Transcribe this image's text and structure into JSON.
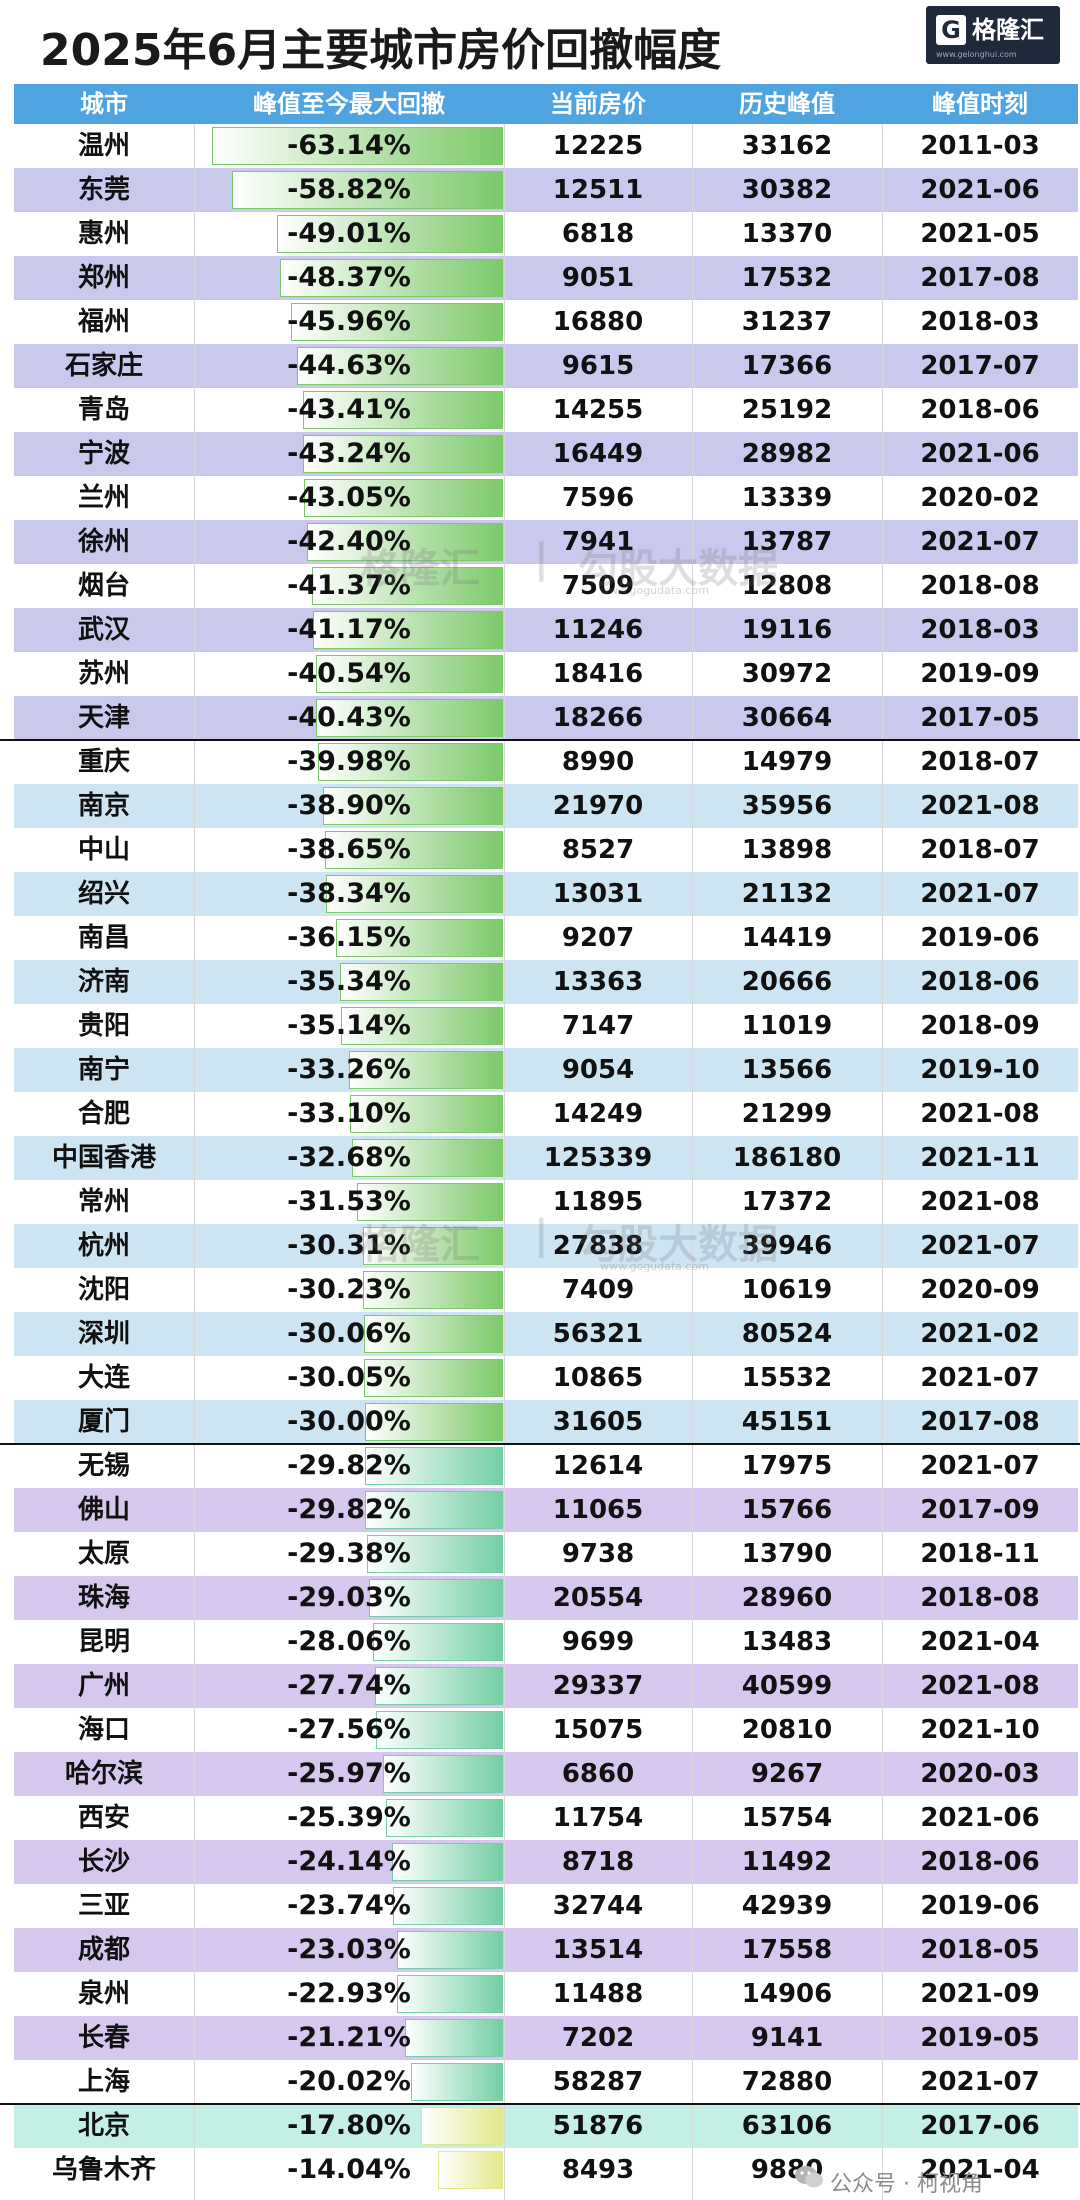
{
  "header": {
    "title": "2025年6月主要城市房价回撤幅度",
    "logo_mark": "G",
    "logo_text": "格隆汇",
    "logo_url": "www.gelonghui.com"
  },
  "columns": [
    "城市",
    "峰值至今最大回撤",
    "当前房价",
    "历史峰值",
    "峰值时刻"
  ],
  "watermark": {
    "brand": "格隆汇",
    "divider": "|",
    "data_brand": "勾股大数据",
    "url": "www.gogudata.com"
  },
  "footer": {
    "text": "公众号 · 柯视角"
  },
  "colors": {
    "header_bg": "#4fa3df",
    "group1_alt": "#c9c9ee",
    "group2_alt": "#cde5f2",
    "group3_alt": "#d5c7ee",
    "group4_row": "#c4efe6",
    "bar_green": "#7cc96a",
    "bar_teal": "#74cfa5",
    "bar_yellow": "#e2e88a"
  },
  "chart_data": {
    "type": "table",
    "title": "2025年6月主要城市房价回撤幅度",
    "columns": [
      "城市",
      "峰值至今最大回撤",
      "当前房价",
      "历史峰值",
      "峰值时刻"
    ],
    "rows": [
      {
        "city": "温州",
        "drawdown": "-63.14%",
        "drop": 63.14,
        "current": "12225",
        "peak": "33162",
        "peak_date": "2011-03",
        "group": 1
      },
      {
        "city": "东莞",
        "drawdown": "-58.82%",
        "drop": 58.82,
        "current": "12511",
        "peak": "30382",
        "peak_date": "2021-06",
        "group": 1
      },
      {
        "city": "惠州",
        "drawdown": "-49.01%",
        "drop": 49.01,
        "current": "6818",
        "peak": "13370",
        "peak_date": "2021-05",
        "group": 1
      },
      {
        "city": "郑州",
        "drawdown": "-48.37%",
        "drop": 48.37,
        "current": "9051",
        "peak": "17532",
        "peak_date": "2017-08",
        "group": 1
      },
      {
        "city": "福州",
        "drawdown": "-45.96%",
        "drop": 45.96,
        "current": "16880",
        "peak": "31237",
        "peak_date": "2018-03",
        "group": 1
      },
      {
        "city": "石家庄",
        "drawdown": "-44.63%",
        "drop": 44.63,
        "current": "9615",
        "peak": "17366",
        "peak_date": "2017-07",
        "group": 1
      },
      {
        "city": "青岛",
        "drawdown": "-43.41%",
        "drop": 43.41,
        "current": "14255",
        "peak": "25192",
        "peak_date": "2018-06",
        "group": 1
      },
      {
        "city": "宁波",
        "drawdown": "-43.24%",
        "drop": 43.24,
        "current": "16449",
        "peak": "28982",
        "peak_date": "2021-06",
        "group": 1
      },
      {
        "city": "兰州",
        "drawdown": "-43.05%",
        "drop": 43.05,
        "current": "7596",
        "peak": "13339",
        "peak_date": "2020-02",
        "group": 1
      },
      {
        "city": "徐州",
        "drawdown": "-42.40%",
        "drop": 42.4,
        "current": "7941",
        "peak": "13787",
        "peak_date": "2021-07",
        "group": 1
      },
      {
        "city": "烟台",
        "drawdown": "-41.37%",
        "drop": 41.37,
        "current": "7509",
        "peak": "12808",
        "peak_date": "2018-08",
        "group": 1
      },
      {
        "city": "武汉",
        "drawdown": "-41.17%",
        "drop": 41.17,
        "current": "11246",
        "peak": "19116",
        "peak_date": "2018-03",
        "group": 1
      },
      {
        "city": "苏州",
        "drawdown": "-40.54%",
        "drop": 40.54,
        "current": "18416",
        "peak": "30972",
        "peak_date": "2019-09",
        "group": 1
      },
      {
        "city": "天津",
        "drawdown": "-40.43%",
        "drop": 40.43,
        "current": "18266",
        "peak": "30664",
        "peak_date": "2017-05",
        "group": 1
      },
      {
        "city": "重庆",
        "drawdown": "-39.98%",
        "drop": 39.98,
        "current": "8990",
        "peak": "14979",
        "peak_date": "2018-07",
        "group": 2
      },
      {
        "city": "南京",
        "drawdown": "-38.90%",
        "drop": 38.9,
        "current": "21970",
        "peak": "35956",
        "peak_date": "2021-08",
        "group": 2
      },
      {
        "city": "中山",
        "drawdown": "-38.65%",
        "drop": 38.65,
        "current": "8527",
        "peak": "13898",
        "peak_date": "2018-07",
        "group": 2
      },
      {
        "city": "绍兴",
        "drawdown": "-38.34%",
        "drop": 38.34,
        "current": "13031",
        "peak": "21132",
        "peak_date": "2021-07",
        "group": 2
      },
      {
        "city": "南昌",
        "drawdown": "-36.15%",
        "drop": 36.15,
        "current": "9207",
        "peak": "14419",
        "peak_date": "2019-06",
        "group": 2
      },
      {
        "city": "济南",
        "drawdown": "-35.34%",
        "drop": 35.34,
        "current": "13363",
        "peak": "20666",
        "peak_date": "2018-06",
        "group": 2
      },
      {
        "city": "贵阳",
        "drawdown": "-35.14%",
        "drop": 35.14,
        "current": "7147",
        "peak": "11019",
        "peak_date": "2018-09",
        "group": 2
      },
      {
        "city": "南宁",
        "drawdown": "-33.26%",
        "drop": 33.26,
        "current": "9054",
        "peak": "13566",
        "peak_date": "2019-10",
        "group": 2
      },
      {
        "city": "合肥",
        "drawdown": "-33.10%",
        "drop": 33.1,
        "current": "14249",
        "peak": "21299",
        "peak_date": "2021-08",
        "group": 2
      },
      {
        "city": "中国香港",
        "drawdown": "-32.68%",
        "drop": 32.68,
        "current": "125339",
        "peak": "186180",
        "peak_date": "2021-11",
        "group": 2
      },
      {
        "city": "常州",
        "drawdown": "-31.53%",
        "drop": 31.53,
        "current": "11895",
        "peak": "17372",
        "peak_date": "2021-08",
        "group": 2
      },
      {
        "city": "杭州",
        "drawdown": "-30.31%",
        "drop": 30.31,
        "current": "27838",
        "peak": "39946",
        "peak_date": "2021-07",
        "group": 2
      },
      {
        "city": "沈阳",
        "drawdown": "-30.23%",
        "drop": 30.23,
        "current": "7409",
        "peak": "10619",
        "peak_date": "2020-09",
        "group": 2
      },
      {
        "city": "深圳",
        "drawdown": "-30.06%",
        "drop": 30.06,
        "current": "56321",
        "peak": "80524",
        "peak_date": "2021-02",
        "group": 2
      },
      {
        "city": "大连",
        "drawdown": "-30.05%",
        "drop": 30.05,
        "current": "10865",
        "peak": "15532",
        "peak_date": "2021-07",
        "group": 2
      },
      {
        "city": "厦门",
        "drawdown": "-30.00%",
        "drop": 30.0,
        "current": "31605",
        "peak": "45151",
        "peak_date": "2017-08",
        "group": 2
      },
      {
        "city": "无锡",
        "drawdown": "-29.82%",
        "drop": 29.82,
        "current": "12614",
        "peak": "17975",
        "peak_date": "2021-07",
        "group": 3
      },
      {
        "city": "佛山",
        "drawdown": "-29.82%",
        "drop": 29.82,
        "current": "11065",
        "peak": "15766",
        "peak_date": "2017-09",
        "group": 3
      },
      {
        "city": "太原",
        "drawdown": "-29.38%",
        "drop": 29.38,
        "current": "9738",
        "peak": "13790",
        "peak_date": "2018-11",
        "group": 3
      },
      {
        "city": "珠海",
        "drawdown": "-29.03%",
        "drop": 29.03,
        "current": "20554",
        "peak": "28960",
        "peak_date": "2018-08",
        "group": 3
      },
      {
        "city": "昆明",
        "drawdown": "-28.06%",
        "drop": 28.06,
        "current": "9699",
        "peak": "13483",
        "peak_date": "2021-04",
        "group": 3
      },
      {
        "city": "广州",
        "drawdown": "-27.74%",
        "drop": 27.74,
        "current": "29337",
        "peak": "40599",
        "peak_date": "2021-08",
        "group": 3
      },
      {
        "city": "海口",
        "drawdown": "-27.56%",
        "drop": 27.56,
        "current": "15075",
        "peak": "20810",
        "peak_date": "2021-10",
        "group": 3
      },
      {
        "city": "哈尔滨",
        "drawdown": "-25.97%",
        "drop": 25.97,
        "current": "6860",
        "peak": "9267",
        "peak_date": "2020-03",
        "group": 3
      },
      {
        "city": "西安",
        "drawdown": "-25.39%",
        "drop": 25.39,
        "current": "11754",
        "peak": "15754",
        "peak_date": "2021-06",
        "group": 3
      },
      {
        "city": "长沙",
        "drawdown": "-24.14%",
        "drop": 24.14,
        "current": "8718",
        "peak": "11492",
        "peak_date": "2018-06",
        "group": 3
      },
      {
        "city": "三亚",
        "drawdown": "-23.74%",
        "drop": 23.74,
        "current": "32744",
        "peak": "42939",
        "peak_date": "2019-06",
        "group": 3
      },
      {
        "city": "成都",
        "drawdown": "-23.03%",
        "drop": 23.03,
        "current": "13514",
        "peak": "17558",
        "peak_date": "2018-05",
        "group": 3
      },
      {
        "city": "泉州",
        "drawdown": "-22.93%",
        "drop": 22.93,
        "current": "11488",
        "peak": "14906",
        "peak_date": "2021-09",
        "group": 3
      },
      {
        "city": "长春",
        "drawdown": "-21.21%",
        "drop": 21.21,
        "current": "7202",
        "peak": "9141",
        "peak_date": "2019-05",
        "group": 3
      },
      {
        "city": "上海",
        "drawdown": "-20.02%",
        "drop": 20.02,
        "current": "58287",
        "peak": "72880",
        "peak_date": "2021-07",
        "group": 3
      },
      {
        "city": "北京",
        "drawdown": "-17.80%",
        "drop": 17.8,
        "current": "51876",
        "peak": "63106",
        "peak_date": "2017-06",
        "group": 4
      },
      {
        "city": "乌鲁木齐",
        "drawdown": "-14.04%",
        "drop": 14.04,
        "current": "8493",
        "peak": "9880",
        "peak_date": "2021-04",
        "group": 4
      }
    ]
  }
}
